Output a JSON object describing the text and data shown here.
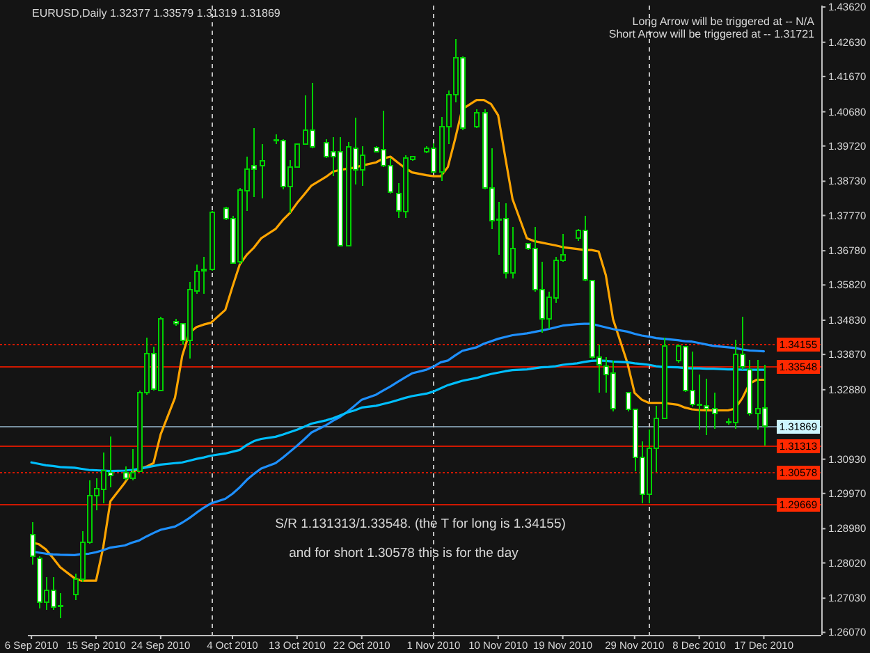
{
  "chart_data": {
    "type": "candlestick",
    "title": "EURUSD,Daily 1.32377 1.33579 1.31319 1.31869",
    "color": "#00d000",
    "x": [
      "2010-09-06",
      "2010-09-07",
      "2010-09-08",
      "2010-09-09",
      "2010-09-10",
      "2010-09-12",
      "2010-09-13",
      "2010-09-14",
      "2010-09-15",
      "2010-09-16",
      "2010-09-17",
      "2010-09-19",
      "2010-09-20",
      "2010-09-21",
      "2010-09-22",
      "2010-09-23",
      "2010-09-24",
      "2010-09-26",
      "2010-09-27",
      "2010-09-28",
      "2010-09-29",
      "2010-09-30",
      "2010-10-01",
      "2010-10-03",
      "2010-10-04",
      "2010-10-05",
      "2010-10-06",
      "2010-10-07",
      "2010-10-08",
      "2010-10-10",
      "2010-10-11",
      "2010-10-12",
      "2010-10-13",
      "2010-10-14",
      "2010-10-15",
      "2010-10-17",
      "2010-10-18",
      "2010-10-19",
      "2010-10-20",
      "2010-10-21",
      "2010-10-22",
      "2010-10-24",
      "2010-10-25",
      "2010-10-26",
      "2010-10-27",
      "2010-10-28",
      "2010-10-29",
      "2010-10-31",
      "2010-11-01",
      "2010-11-02",
      "2010-11-03",
      "2010-11-04",
      "2010-11-05",
      "2010-11-07",
      "2010-11-08",
      "2010-11-09",
      "2010-11-10",
      "2010-11-11",
      "2010-11-12",
      "2010-11-14",
      "2010-11-15",
      "2010-11-16",
      "2010-11-17",
      "2010-11-18",
      "2010-11-19",
      "2010-11-21",
      "2010-11-22",
      "2010-11-23",
      "2010-11-24",
      "2010-11-25",
      "2010-11-26",
      "2010-11-28",
      "2010-11-29",
      "2010-11-30",
      "2010-12-01",
      "2010-12-02",
      "2010-12-03",
      "2010-12-05",
      "2010-12-06",
      "2010-12-07",
      "2010-12-08",
      "2010-12-09",
      "2010-12-10",
      "2010-12-12",
      "2010-12-13",
      "2010-12-14",
      "2010-12-15",
      "2010-12-16",
      "2010-12-17"
    ],
    "xlim": [
      "2010-09-05T12:00",
      "2010-12-25"
    ],
    "xticks": [
      {
        "value": "2010-09-06",
        "label": "6 Sep 2010"
      },
      {
        "value": "2010-09-15",
        "label": "15 Sep 2010"
      },
      {
        "value": "2010-09-24",
        "label": "24 Sep 2010"
      },
      {
        "value": "2010-10-04",
        "label": "4 Oct 2010"
      },
      {
        "value": "2010-10-13",
        "label": "13 Oct 2010"
      },
      {
        "value": "2010-10-22",
        "label": "22 Oct 2010"
      },
      {
        "value": "2010-11-01",
        "label": "1 Nov 2010"
      },
      {
        "value": "2010-11-10",
        "label": "10 Nov 2010"
      },
      {
        "value": "2010-11-19",
        "label": "19 Nov 2010"
      },
      {
        "value": "2010-11-29",
        "label": "29 Nov 2010"
      },
      {
        "value": "2010-12-08",
        "label": "8 Dec 2010"
      },
      {
        "value": "2010-12-17",
        "label": "17 Dec 2010"
      }
    ],
    "ohlc": [
      [
        1.2881,
        1.2917,
        1.2797,
        1.282
      ],
      [
        1.2814,
        1.282,
        1.2674,
        1.2691
      ],
      [
        1.2691,
        1.2762,
        1.2671,
        1.2726
      ],
      [
        1.2726,
        1.2762,
        1.2671,
        1.2678
      ],
      [
        1.268,
        1.2717,
        1.2646,
        1.2682
      ],
      [
        1.2713,
        1.2772,
        1.2697,
        1.2756
      ],
      [
        1.2756,
        1.2891,
        1.2749,
        1.2859
      ],
      [
        1.2859,
        1.3034,
        1.2855,
        1.2991
      ],
      [
        1.2991,
        1.304,
        1.295,
        1.301
      ],
      [
        1.3008,
        1.3111,
        1.2969,
        1.3062
      ],
      [
        1.3056,
        1.3157,
        1.3014,
        1.3047
      ],
      [
        1.3056,
        1.3072,
        1.3034,
        1.304
      ],
      [
        1.304,
        1.3122,
        1.3034,
        1.3056
      ],
      [
        1.306,
        1.3286,
        1.3057,
        1.3279
      ],
      [
        1.3279,
        1.3435,
        1.3273,
        1.3389
      ],
      [
        1.3389,
        1.3409,
        1.3286,
        1.329
      ],
      [
        1.3286,
        1.3493,
        1.3284,
        1.3486
      ],
      [
        1.348,
        1.3486,
        1.3467,
        1.3473
      ],
      [
        1.3473,
        1.3476,
        1.3415,
        1.3426
      ],
      [
        1.3426,
        1.359,
        1.3376,
        1.3568
      ],
      [
        1.3566,
        1.3639,
        1.3558,
        1.362
      ],
      [
        1.3622,
        1.3661,
        1.3558,
        1.3626
      ],
      [
        1.3625,
        1.3789,
        1.3622,
        1.3786
      ],
      [
        1.3797,
        1.3801,
        1.3764,
        1.3768
      ],
      [
        1.3768,
        1.3777,
        1.3642,
        1.3644
      ],
      [
        1.3648,
        1.3854,
        1.3642,
        1.3849
      ],
      [
        1.3846,
        1.3942,
        1.379,
        1.3907
      ],
      [
        1.3916,
        1.4023,
        1.3829,
        1.3907
      ],
      [
        1.3916,
        1.3978,
        1.3825,
        1.393
      ],
      [
        1.3987,
        1.4004,
        1.3978,
        1.3989
      ],
      [
        1.3987,
        1.3991,
        1.3851,
        1.3859
      ],
      [
        1.3859,
        1.3933,
        1.3784,
        1.3913
      ],
      [
        1.3913,
        1.398,
        1.3911,
        1.3978
      ],
      [
        1.3978,
        1.4114,
        1.3977,
        1.4017
      ],
      [
        1.4017,
        1.4149,
        1.3965,
        1.3969
      ],
      [
        1.3982,
        1.3991,
        1.3939,
        1.3943
      ],
      [
        1.3955,
        1.3997,
        1.3887,
        1.3943
      ],
      [
        1.3955,
        1.3997,
        1.3691,
        1.3693
      ],
      [
        1.3693,
        1.3983,
        1.3691,
        1.3969
      ],
      [
        1.3965,
        1.4052,
        1.3864,
        1.3904
      ],
      [
        1.3904,
        1.3971,
        1.3861,
        1.3946
      ],
      [
        1.3968,
        1.3971,
        1.3954,
        1.3956
      ],
      [
        1.3961,
        1.4071,
        1.3913,
        1.3916
      ],
      [
        1.3916,
        1.3939,
        1.3838,
        1.3842
      ],
      [
        1.3838,
        1.3868,
        1.3771,
        1.379
      ],
      [
        1.3788,
        1.3946,
        1.3771,
        1.3939
      ],
      [
        1.3935,
        1.3944,
        1.3931,
        1.3942
      ],
      [
        1.3955,
        1.3971,
        1.3952,
        1.3965
      ],
      [
        1.3965,
        1.398,
        1.3898,
        1.39
      ],
      [
        1.39,
        1.4053,
        1.3874,
        1.4026
      ],
      [
        1.4027,
        1.4127,
        1.3978,
        1.4116
      ],
      [
        1.4116,
        1.4273,
        1.4094,
        1.422
      ],
      [
        1.422,
        1.4224,
        1.4017,
        1.4023
      ],
      [
        1.4027,
        1.4075,
        1.4023,
        1.4066
      ],
      [
        1.4066,
        1.4075,
        1.3851,
        1.3855
      ],
      [
        1.3855,
        1.3965,
        1.3739,
        1.3762
      ],
      [
        1.3767,
        1.3816,
        1.3667,
        1.3765
      ],
      [
        1.3768,
        1.3812,
        1.36,
        1.3616
      ],
      [
        1.3616,
        1.3745,
        1.36,
        1.3684
      ],
      [
        1.3697,
        1.37,
        1.368,
        1.3684
      ],
      [
        1.3684,
        1.3745,
        1.3564,
        1.3568
      ],
      [
        1.3568,
        1.3648,
        1.3448,
        1.3486
      ],
      [
        1.3486,
        1.3564,
        1.346,
        1.3547
      ],
      [
        1.3545,
        1.3661,
        1.3532,
        1.3651
      ],
      [
        1.3651,
        1.3726,
        1.3648,
        1.3667
      ],
      [
        1.3713,
        1.3739,
        1.3706,
        1.3735
      ],
      [
        1.3735,
        1.3777,
        1.3592,
        1.3596
      ],
      [
        1.3594,
        1.3596,
        1.3376,
        1.338
      ],
      [
        1.338,
        1.3415,
        1.3279,
        1.3357
      ],
      [
        1.3354,
        1.338,
        1.3279,
        1.3331
      ],
      [
        1.3334,
        1.337,
        1.3228,
        1.3234
      ],
      [
        1.3279,
        1.3282,
        1.3228,
        1.3232
      ],
      [
        1.3232,
        1.3234,
        1.306,
        1.3098
      ],
      [
        1.3098,
        1.3144,
        1.2969,
        1.2995
      ],
      [
        1.2995,
        1.3176,
        1.2969,
        1.3124
      ],
      [
        1.3124,
        1.3243,
        1.3057,
        1.3208
      ],
      [
        1.3208,
        1.3435,
        1.3205,
        1.3411
      ],
      [
        1.337,
        1.3415,
        1.3363,
        1.3411
      ],
      [
        1.3409,
        1.3411,
        1.3282,
        1.3286
      ],
      [
        1.3286,
        1.3396,
        1.3241,
        1.3247
      ],
      [
        1.3244,
        1.3331,
        1.3176,
        1.3246
      ],
      [
        1.3243,
        1.3318,
        1.316,
        1.3234
      ],
      [
        1.3234,
        1.3279,
        1.3178,
        1.3221
      ],
      [
        1.3195,
        1.3208,
        1.3189,
        1.3197
      ],
      [
        1.3195,
        1.3428,
        1.3178,
        1.3387
      ],
      [
        1.3387,
        1.3493,
        1.3344,
        1.3353
      ],
      [
        1.3344,
        1.3372,
        1.3215,
        1.3221
      ],
      [
        1.3221,
        1.3372,
        1.3176,
        1.3234
      ],
      [
        1.32377,
        1.33579,
        1.31319,
        1.31869
      ]
    ],
    "series": [
      {
        "type": "line",
        "color": "#ffa500",
        "values": [
          1.2859,
          1.2855,
          1.284,
          1.2816,
          1.279,
          1.2759,
          1.2752,
          1.2752,
          1.2752,
          1.2846,
          1.2975,
          1.3027,
          1.3057,
          1.3066,
          1.3072,
          1.3082,
          1.3163,
          1.3266,
          1.3383,
          1.3448,
          1.3464,
          1.3471,
          1.3476,
          1.3512,
          1.3577,
          1.3639,
          1.3667,
          1.3687,
          1.3713,
          1.3739,
          1.3764,
          1.3784,
          1.3812,
          1.3836,
          1.3861,
          1.3885,
          1.39,
          1.3905,
          1.3908,
          1.3911,
          1.3917,
          1.3926,
          1.3937,
          1.3942,
          1.3926,
          1.3911,
          1.3898,
          1.389,
          1.3887,
          1.3887,
          1.3913,
          1.3991,
          1.4075,
          1.4101,
          1.4101,
          1.409,
          1.4058,
          1.3939,
          1.3823,
          1.3713,
          1.3705,
          1.3701,
          1.3697,
          1.3693,
          1.3688,
          1.3683,
          1.368,
          1.368,
          1.3676,
          1.3609,
          1.3486,
          1.3363,
          1.3279,
          1.326,
          1.3251,
          1.3251,
          1.3251,
          1.3246,
          1.3238,
          1.3233,
          1.3231,
          1.323,
          1.323,
          1.323,
          1.3235,
          1.3264,
          1.3305,
          1.3316,
          1.3316
        ]
      },
      {
        "type": "line",
        "color": "#1e90ff",
        "values": [
          1.2834,
          1.2831,
          1.2828,
          1.2826,
          1.2825,
          1.2824,
          1.2827,
          1.2828,
          1.2832,
          1.2838,
          1.2845,
          1.2851,
          1.2859,
          1.2865,
          1.2876,
          1.2886,
          1.2895,
          1.2904,
          1.2915,
          1.2928,
          1.2943,
          1.2957,
          1.2969,
          1.2982,
          1.2996,
          1.3014,
          1.3035,
          1.3052,
          1.3067,
          1.3082,
          1.3097,
          1.3114,
          1.3131,
          1.3149,
          1.3168,
          1.3188,
          1.3201,
          1.3212,
          1.3226,
          1.3243,
          1.326,
          1.3274,
          1.3286,
          1.3297,
          1.331,
          1.3322,
          1.3334,
          1.3344,
          1.3353,
          1.3365,
          1.337,
          1.3384,
          1.3397,
          1.3407,
          1.3417,
          1.3424,
          1.3431,
          1.3436,
          1.3441,
          1.3446,
          1.345,
          1.3454,
          1.3458,
          1.3463,
          1.3468,
          1.3472,
          1.3473,
          1.3473,
          1.3468,
          1.3463,
          1.3458,
          1.3451,
          1.3445,
          1.344,
          1.3437,
          1.3433,
          1.3431,
          1.3427,
          1.3424,
          1.3423,
          1.3419,
          1.3415,
          1.3411,
          1.3407,
          1.3405,
          1.3401,
          1.3398,
          1.3397,
          1.3396
        ]
      },
      {
        "type": "line",
        "color": "#00bfff",
        "values": [
          1.3084,
          1.308,
          1.3076,
          1.3074,
          1.3071,
          1.3069,
          1.3066,
          1.3063,
          1.3062,
          1.3061,
          1.306,
          1.3061,
          1.3063,
          1.3066,
          1.307,
          1.3074,
          1.3078,
          1.3082,
          1.3084,
          1.3089,
          1.3094,
          1.3098,
          1.3103,
          1.3109,
          1.3114,
          1.3119,
          1.3133,
          1.3144,
          1.315,
          1.3156,
          1.3162,
          1.3169,
          1.3176,
          1.3184,
          1.3193,
          1.3202,
          1.3208,
          1.3216,
          1.3224,
          1.323,
          1.3238,
          1.3243,
          1.3248,
          1.3253,
          1.3259,
          1.3265,
          1.327,
          1.3277,
          1.3283,
          1.3292,
          1.3301,
          1.3307,
          1.3313,
          1.3321,
          1.3327,
          1.3332,
          1.3336,
          1.334,
          1.3343,
          1.3345,
          1.3348,
          1.3351,
          1.3352,
          1.3354,
          1.3358,
          1.3362,
          1.3366,
          1.3369,
          1.337,
          1.3369,
          1.3367,
          1.3365,
          1.3362,
          1.336,
          1.3358,
          1.3354,
          1.3352,
          1.3351,
          1.3349,
          1.3348,
          1.3348,
          1.3347,
          1.3347,
          1.3345,
          1.3345,
          1.3344,
          1.3344,
          1.3344,
          1.3344
        ]
      }
    ],
    "ylim": [
      1.26,
      1.4366
    ],
    "yticks": [
      {
        "value": 1.2607,
        "label": "1.26070"
      },
      {
        "value": 1.2703,
        "label": "1.27030"
      },
      {
        "value": 1.2802,
        "label": "1.28020"
      },
      {
        "value": 1.2898,
        "label": "1.28980"
      },
      {
        "value": 1.2997,
        "label": "1.29970"
      },
      {
        "value": 1.3093,
        "label": "1.30930"
      },
      {
        "value": 1.3288,
        "label": "1.32880"
      },
      {
        "value": 1.3387,
        "label": "1.33870"
      },
      {
        "value": 1.3483,
        "label": "1.34830"
      },
      {
        "value": 1.3582,
        "label": "1.35820"
      },
      {
        "value": 1.3678,
        "label": "1.36780"
      },
      {
        "value": 1.3777,
        "label": "1.37770"
      },
      {
        "value": 1.3873,
        "label": "1.38730"
      },
      {
        "value": 1.3972,
        "label": "1.39720"
      },
      {
        "value": 1.4068,
        "label": "1.40680"
      },
      {
        "value": 1.4167,
        "label": "1.41670"
      },
      {
        "value": 1.4263,
        "label": "1.42630"
      },
      {
        "value": 1.4362,
        "label": "1.43620"
      }
    ],
    "ref_lines": [
      {
        "axis": "y",
        "value": 1.34155,
        "label": "1.34155",
        "color": "#d01800",
        "line_style": "dotted"
      },
      {
        "axis": "y",
        "value": 1.33548,
        "label": "1.33548",
        "color": "#d01800"
      },
      {
        "axis": "y",
        "value": 1.31869,
        "label": "1.31869",
        "color": "#7890a0"
      },
      {
        "axis": "y",
        "value": 1.31313,
        "label": "1.31313",
        "color": "#d01800"
      },
      {
        "axis": "y",
        "value": 1.30578,
        "label": "1.30578",
        "color": "#d01800",
        "line_style": "dotted"
      },
      {
        "axis": "y",
        "value": 1.29669,
        "label": "1.29669",
        "color": "#d01800"
      },
      {
        "axis": "x",
        "value": "2010-10-01",
        "color": "#c0c0c0",
        "line_style": "dashed"
      },
      {
        "axis": "x",
        "value": "2010-11-01",
        "color": "#c0c0c0",
        "line_style": "dashed"
      },
      {
        "axis": "x",
        "value": "2010-12-01",
        "color": "#c0c0c0",
        "line_style": "dashed"
      }
    ],
    "annotations": [
      "Long Arrow will be triggered at -- N/A",
      "Short Arrow will be triggered at -- 1.31721",
      "S/R 1.131313/1.33548. (the T for long is 1.34155)",
      "and for short 1.30578 this is for the day"
    ]
  }
}
